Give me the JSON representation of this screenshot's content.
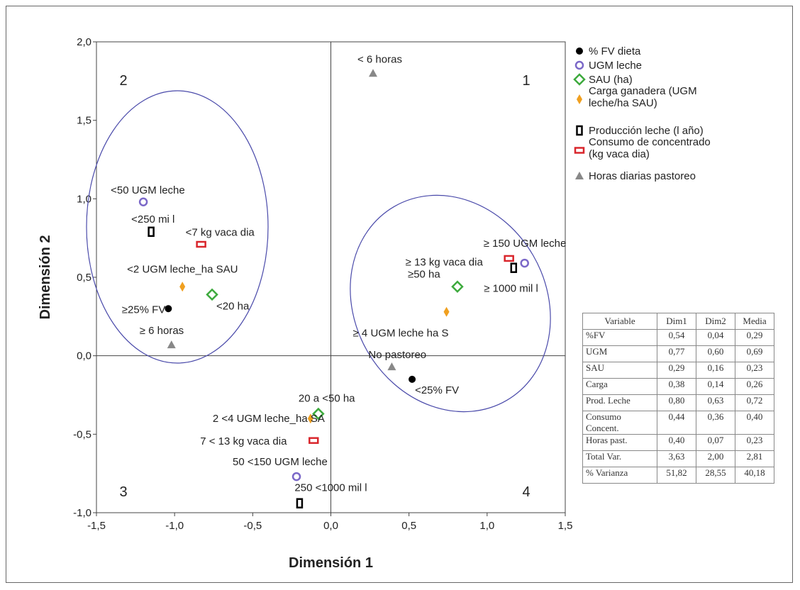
{
  "chart_data": {
    "type": "scatter",
    "xlabel": "Dimensión 1",
    "ylabel": "Dimensión 2",
    "xlim": [
      -1.5,
      1.5
    ],
    "ylim": [
      -1.0,
      2.0
    ],
    "xticks": [
      "-1,5",
      "-1,0",
      "-0,5",
      "0,0",
      "0,5",
      "1,0",
      "1,5"
    ],
    "yticks": [
      "-1,0",
      "-0,5",
      "0,0",
      "0,5",
      "1,0",
      "1,5",
      "2,0"
    ],
    "quadrants": [
      "1",
      "2",
      "3",
      "4"
    ],
    "series": [
      {
        "name": "% FV dieta",
        "marker": "dot",
        "color": "#000000",
        "points": [
          {
            "x": -1.04,
            "y": 0.3,
            "label": "≥25% FV"
          },
          {
            "x": 0.52,
            "y": -0.15,
            "label": "<25% FV"
          }
        ]
      },
      {
        "name": "UGM leche",
        "marker": "circle",
        "color": "#7b68c8",
        "points": [
          {
            "x": -1.2,
            "y": 0.98,
            "label": "<50 UGM leche"
          },
          {
            "x": 1.24,
            "y": 0.59,
            "label": "≥ 150 UGM leche"
          },
          {
            "x": -0.22,
            "y": -0.77,
            "label": "50 <150 UGM leche"
          }
        ]
      },
      {
        "name": "SAU (ha)",
        "marker": "diamond",
        "color": "#3daa3d",
        "points": [
          {
            "x": -0.76,
            "y": 0.39,
            "label": "<20 ha"
          },
          {
            "x": 0.81,
            "y": 0.44,
            "label": "≥50 ha"
          },
          {
            "x": -0.08,
            "y": -0.37,
            "label": "20 a <50 ha"
          }
        ]
      },
      {
        "name": "Carga ganadera (UGM leche/ha SAU)",
        "marker": "filled-diamond",
        "color": "#f0a020",
        "points": [
          {
            "x": -0.95,
            "y": 0.44,
            "label": "<2 UGM leche_ha SAU"
          },
          {
            "x": 0.74,
            "y": 0.28,
            "label": "≥ 4 UGM leche ha S"
          },
          {
            "x": -0.13,
            "y": -0.4,
            "label": "2 <4 UGM leche_ha SA"
          }
        ]
      },
      {
        "name": "Producción leche (l año)",
        "marker": "square",
        "color": "#000000",
        "points": [
          {
            "x": -1.15,
            "y": 0.79,
            "label": "<250 mi l"
          },
          {
            "x": 1.17,
            "y": 0.56,
            "label": "≥ 1000 mil l"
          },
          {
            "x": -0.2,
            "y": -0.94,
            "label": "250 <1000 mil l"
          }
        ]
      },
      {
        "name": "Consumo de concentrado (kg vaca dia)",
        "marker": "rect",
        "color": "#d9262c",
        "points": [
          {
            "x": -0.83,
            "y": 0.71,
            "label": "<7 kg vaca dia"
          },
          {
            "x": 1.14,
            "y": 0.62,
            "label": "≥ 13 kg vaca dia"
          },
          {
            "x": -0.11,
            "y": -0.54,
            "label": "7 < 13 kg vaca dia"
          }
        ]
      },
      {
        "name": "Horas diarias pastoreo",
        "marker": "triangle",
        "color": "#888888",
        "points": [
          {
            "x": 0.27,
            "y": 1.8,
            "label": "< 6 horas"
          },
          {
            "x": -1.02,
            "y": 0.07,
            "label": "≥ 6 horas"
          },
          {
            "x": 0.39,
            "y": -0.07,
            "label": "No pastoreo"
          }
        ]
      }
    ],
    "ellipse_color": "#4a4aaa",
    "table": {
      "columns": [
        "Variable",
        "Dim1",
        "Dim2",
        "Media"
      ],
      "rows": [
        [
          "%FV",
          "0,54",
          "0,04",
          "0,29"
        ],
        [
          "UGM",
          "0,77",
          "0,60",
          "0,69"
        ],
        [
          "SAU",
          "0,29",
          "0,16",
          "0,23"
        ],
        [
          "Carga",
          "0,38",
          "0,14",
          "0,26"
        ],
        [
          "Prod. Leche",
          "0,80",
          "0,63",
          "0,72"
        ],
        [
          "Consumo Concent.",
          "0,44",
          "0,36",
          "0,40"
        ],
        [
          "Horas past.",
          "0,40",
          "0,07",
          "0,23"
        ],
        [
          "Total  Var.",
          "3,63",
          "2,00",
          "2,81"
        ],
        [
          "% Varianza",
          "51,82",
          "28,55",
          "40,18"
        ]
      ]
    }
  }
}
